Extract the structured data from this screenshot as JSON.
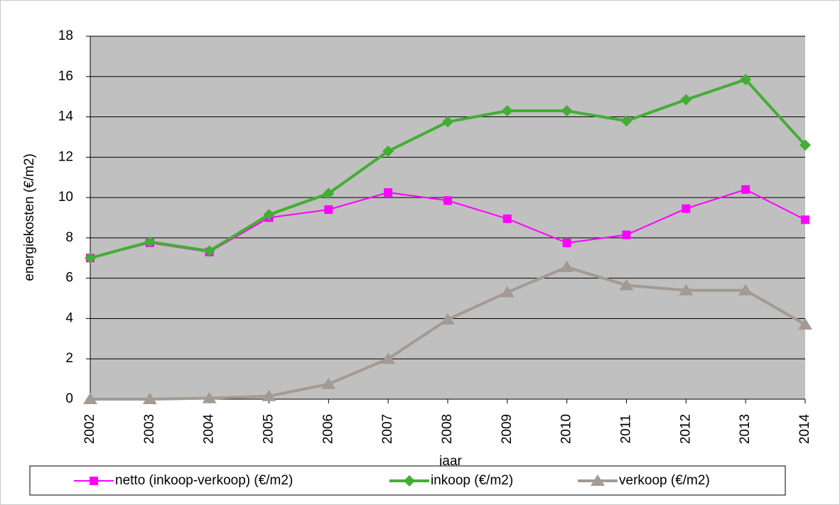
{
  "chart_data": {
    "type": "line",
    "x_label": "jaar",
    "y_label": "energiekosten (€/m2)",
    "categories": [
      "2002",
      "2003",
      "2004",
      "2005",
      "2006",
      "2007",
      "2008",
      "2009",
      "2010",
      "2011",
      "2012",
      "2013",
      "2014"
    ],
    "series": [
      {
        "name": "netto (inkoop-verkoop) (€/m2)",
        "color": "#ff00ff",
        "marker": "square",
        "width": 2,
        "values": [
          7.0,
          7.75,
          7.3,
          9.0,
          9.4,
          10.25,
          9.85,
          8.95,
          7.75,
          8.15,
          9.45,
          10.4,
          8.9
        ]
      },
      {
        "name": "inkoop (€/m2)",
        "color": "#44ad35",
        "marker": "diamond",
        "width": 4,
        "values": [
          7.0,
          7.8,
          7.35,
          9.15,
          10.2,
          12.3,
          13.75,
          14.3,
          14.3,
          13.8,
          14.85,
          15.85,
          12.6
        ]
      },
      {
        "name": "verkoop (€/m2)",
        "color": "#a39a92",
        "marker": "triangle",
        "width": 4,
        "values": [
          0.0,
          0.0,
          0.05,
          0.15,
          0.75,
          2.0,
          3.95,
          5.3,
          6.55,
          5.65,
          5.4,
          5.4,
          3.7
        ]
      }
    ],
    "ylim": [
      0,
      18
    ],
    "yticks": [
      0,
      2,
      4,
      6,
      8,
      10,
      12,
      14,
      16,
      18
    ],
    "grid": true,
    "legend": "bottom"
  }
}
